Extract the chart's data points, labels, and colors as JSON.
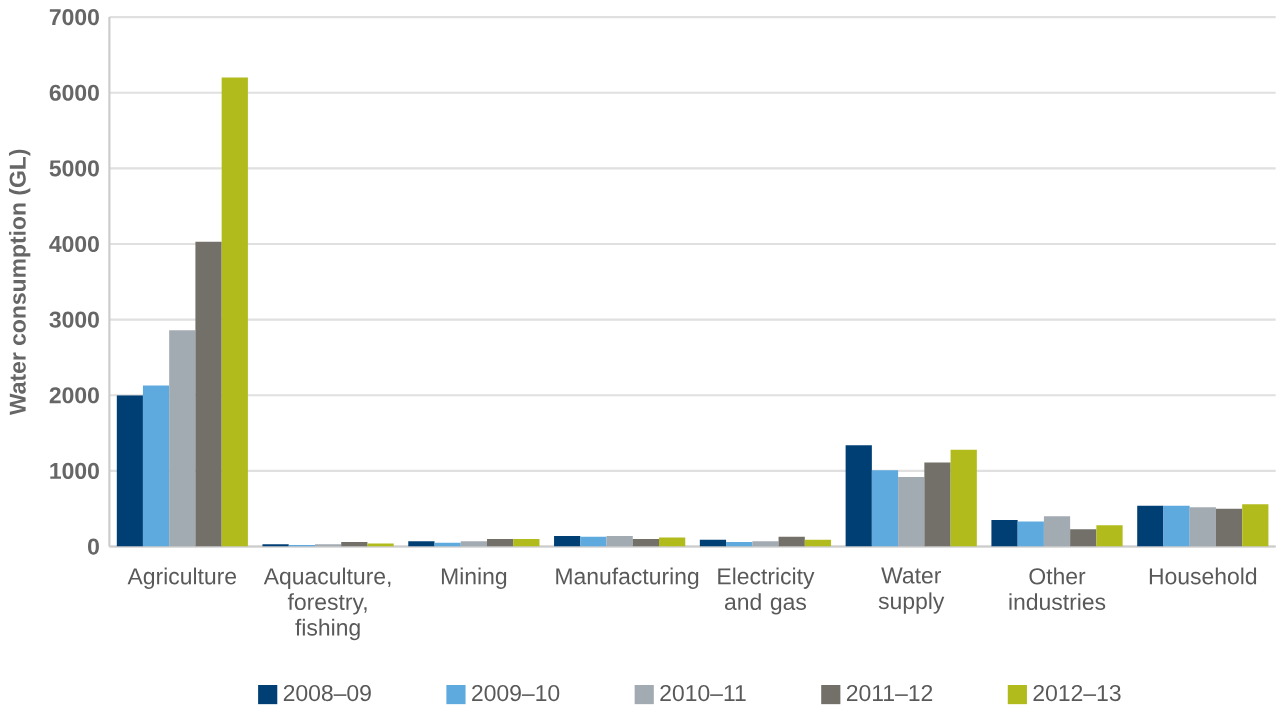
{
  "chart_data": {
    "type": "bar",
    "ylabel": "Water consumption (GL)",
    "categories": [
      "Agriculture",
      "Aquaculture, forestry, fishing",
      "Mining",
      "Manufacturing",
      "Electricity and gas",
      "Water supply",
      "Other industries",
      "Household"
    ],
    "series": [
      {
        "name": "2008–09",
        "color": "#003f74",
        "values": [
          2000,
          30,
          70,
          140,
          90,
          1340,
          350,
          540
        ]
      },
      {
        "name": "2009–10",
        "color": "#5ea9dd",
        "values": [
          2130,
          20,
          50,
          130,
          60,
          1010,
          330,
          540
        ]
      },
      {
        "name": "2010–11",
        "color": "#a3abb2",
        "values": [
          2860,
          30,
          70,
          140,
          70,
          920,
          400,
          520
        ]
      },
      {
        "name": "2011–12",
        "color": "#737069",
        "values": [
          4030,
          60,
          100,
          100,
          130,
          1110,
          230,
          500
        ]
      },
      {
        "name": "2012–13",
        "color": "#b2bb1c",
        "values": [
          6200,
          40,
          100,
          120,
          90,
          1280,
          280,
          560
        ]
      }
    ],
    "ylim": [
      0,
      7000
    ],
    "yticks": [
      0,
      1000,
      2000,
      3000,
      4000,
      5000,
      6000,
      7000
    ],
    "grid": "y",
    "legend": "bottom"
  }
}
